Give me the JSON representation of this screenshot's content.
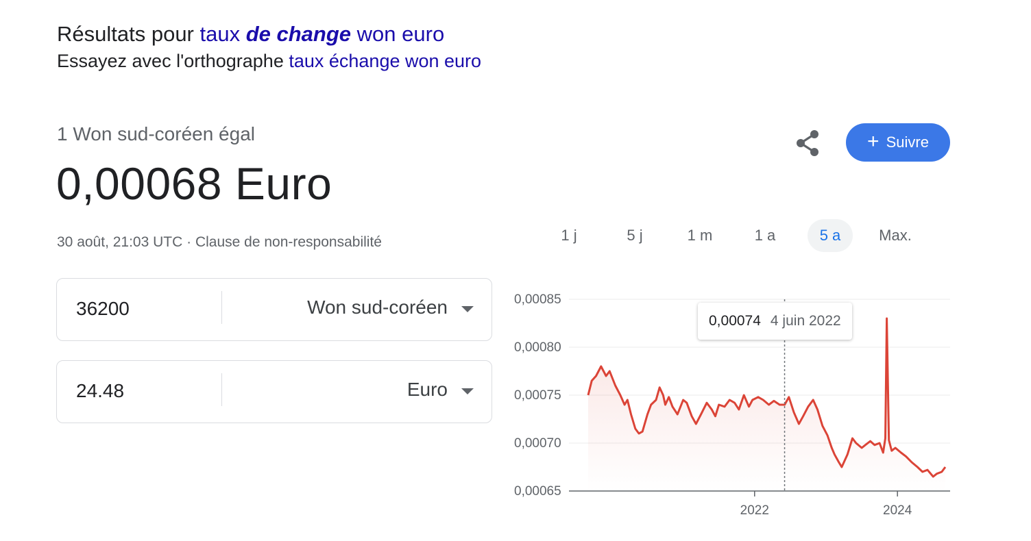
{
  "results": {
    "prefix": "Résultats pour ",
    "query_part1": "taux ",
    "query_emphasis": "de change",
    "query_part2": " won euro"
  },
  "spelling": {
    "prefix": "Essayez avec l'orthographe ",
    "suggestion": "taux échange won euro"
  },
  "conversion": {
    "equals_label": "1 Won sud-coréen égal",
    "value": "0,00068 Euro",
    "timestamp": "30 août, 21:03 UTC",
    "separator": " · ",
    "disclaimer": "Clause de non-responsabilité"
  },
  "actions": {
    "share_icon": "share-icon",
    "follow_label": "Suivre",
    "follow_icon": "plus-icon",
    "accent_color": "#3b78e7"
  },
  "converter": {
    "from_amount": "36200",
    "from_currency": "Won sud-coréen",
    "to_amount": "24.48",
    "to_currency": "Euro"
  },
  "ranges": {
    "items": [
      "1 j",
      "5 j",
      "1 m",
      "1 a",
      "5 a",
      "Max."
    ],
    "active_index": 4
  },
  "tooltip": {
    "value": "0,00074",
    "date": "4 juin 2022"
  },
  "chart_data": {
    "type": "line",
    "series_color": "#db4437",
    "y_ticks": [
      "0,00085",
      "0,00080",
      "0,00075",
      "0,00070",
      "0,00065"
    ],
    "x_ticks": [
      "2022",
      "2024"
    ],
    "ylim": [
      0.00065,
      0.00085
    ],
    "xlim": [
      2019.67,
      2024.67
    ],
    "x_tick_values": [
      2022,
      2024
    ],
    "grid": true,
    "highlight_x": 2022.42,
    "x": [
      2019.67,
      2019.72,
      2019.78,
      2019.85,
      2019.92,
      2019.97,
      2020.05,
      2020.12,
      2020.18,
      2020.22,
      2020.27,
      2020.33,
      2020.38,
      2020.43,
      2020.5,
      2020.55,
      2020.62,
      2020.67,
      2020.72,
      2020.75,
      2020.8,
      2020.85,
      2020.92,
      2021.0,
      2021.05,
      2021.12,
      2021.18,
      2021.25,
      2021.33,
      2021.4,
      2021.45,
      2021.5,
      2021.58,
      2021.65,
      2021.72,
      2021.78,
      2021.85,
      2021.92,
      2021.97,
      2022.05,
      2022.12,
      2022.2,
      2022.27,
      2022.35,
      2022.42,
      2022.48,
      2022.55,
      2022.62,
      2022.68,
      2022.75,
      2022.82,
      2022.88,
      2022.95,
      2023.02,
      2023.08,
      2023.12,
      2023.18,
      2023.22,
      2023.3,
      2023.37,
      2023.42,
      2023.5,
      2023.55,
      2023.62,
      2023.68,
      2023.75,
      2023.8,
      2023.83,
      2023.85,
      2023.88,
      2023.92,
      2023.97,
      2024.05,
      2024.12,
      2024.2,
      2024.28,
      2024.35,
      2024.42,
      2024.5,
      2024.55,
      2024.62,
      2024.67
    ],
    "values": [
      0.00075,
      0.000765,
      0.00077,
      0.00078,
      0.00077,
      0.000775,
      0.00076,
      0.00075,
      0.00074,
      0.000745,
      0.00073,
      0.000715,
      0.00071,
      0.000712,
      0.00073,
      0.00074,
      0.000745,
      0.000758,
      0.00075,
      0.00074,
      0.000748,
      0.000738,
      0.00073,
      0.000745,
      0.000742,
      0.000728,
      0.00072,
      0.00073,
      0.000742,
      0.000735,
      0.000728,
      0.00074,
      0.000738,
      0.000745,
      0.000742,
      0.000735,
      0.00075,
      0.000738,
      0.000745,
      0.000748,
      0.000745,
      0.00074,
      0.000744,
      0.00074,
      0.00074,
      0.000748,
      0.000732,
      0.00072,
      0.000728,
      0.000738,
      0.000745,
      0.000735,
      0.000718,
      0.000708,
      0.000695,
      0.000688,
      0.00068,
      0.000675,
      0.000688,
      0.000705,
      0.0007,
      0.000695,
      0.000698,
      0.000702,
      0.000698,
      0.0007,
      0.00069,
      0.000705,
      0.00083,
      0.000703,
      0.000692,
      0.000695,
      0.00069,
      0.000686,
      0.00068,
      0.000675,
      0.00067,
      0.000672,
      0.000665,
      0.000668,
      0.00067,
      0.000675
    ]
  }
}
